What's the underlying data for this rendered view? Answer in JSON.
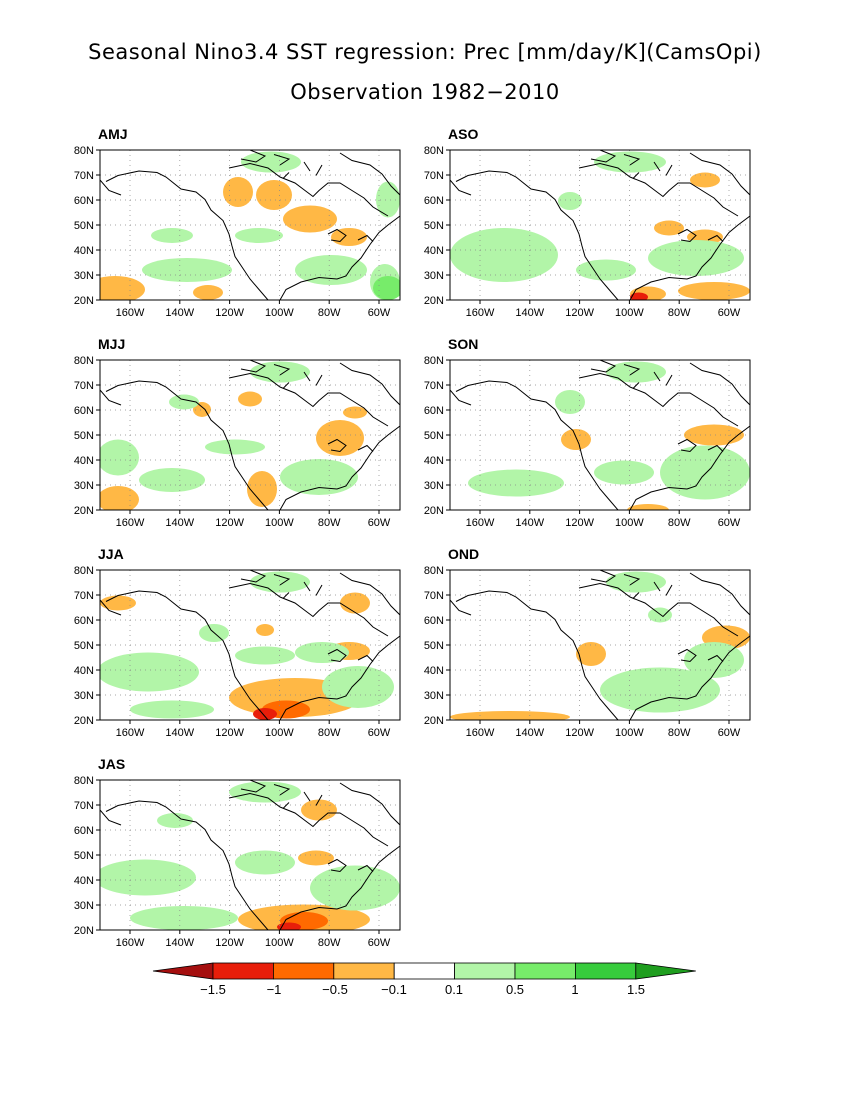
{
  "title": {
    "line1": "Seasonal Nino3.4 SST regression: Prec [mm/day/K](CamsOpi)",
    "line2": "Observation 1982−2010"
  },
  "lat_labels": [
    "80N",
    "70N",
    "60N",
    "50N",
    "40N",
    "30N",
    "20N"
  ],
  "lon_labels": [
    "160W",
    "140W",
    "120W",
    "100W",
    "80W",
    "60W"
  ],
  "panels": [
    {
      "label": "AMJ"
    },
    {
      "label": "ASO"
    },
    {
      "label": "MJJ"
    },
    {
      "label": "SON"
    },
    {
      "label": "JJA"
    },
    {
      "label": "OND"
    },
    {
      "label": "JAS"
    }
  ],
  "colorbar": {
    "ticks": [
      "−1.5",
      "−1",
      "−0.5",
      "−0.1",
      "0.1",
      "0.5",
      "1",
      "1.5"
    ],
    "colors": [
      "#a50f0f",
      "#e81e0a",
      "#ff6a00",
      "#ffb845",
      "#ffffff",
      "#b2f5a8",
      "#77ec6a",
      "#37cc3c",
      "#1f9e1f"
    ]
  }
}
